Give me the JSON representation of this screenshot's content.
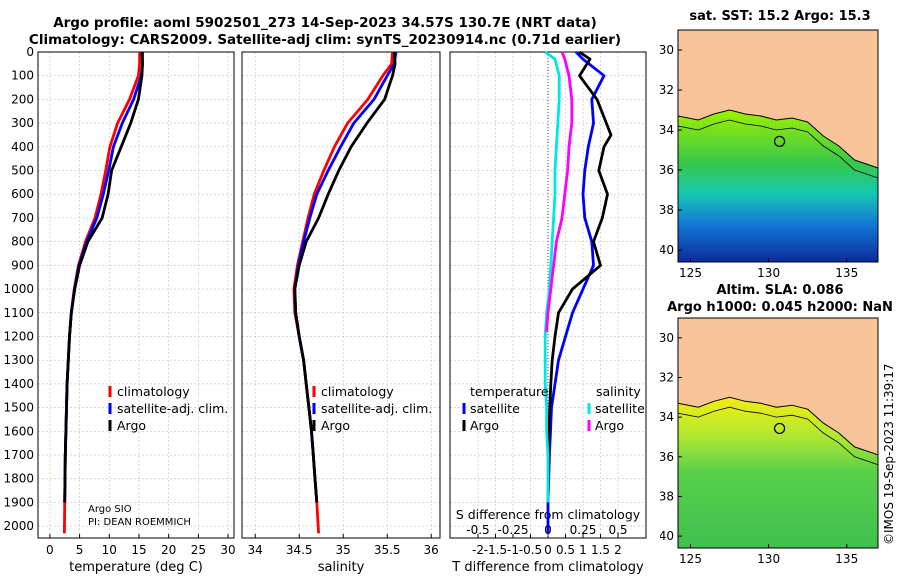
{
  "header": {
    "title_line1": "Argo profile: aoml 5902501_273 14-Sep-2023 34.57S 130.7E (NRT data)",
    "title_line2": "Climatology: CARS2009. Satellite-adj clim: synTS_20230914.nc (0.71d earlier)"
  },
  "credit": "©IMOS 19-Sep-2023 11:39:17",
  "colors": {
    "climatology": "#ff0000",
    "satellite": "#0000ff",
    "argo": "#000000",
    "s_satellite": "#00e5e5",
    "s_argo": "#ff00ff",
    "land": "#f9c49a",
    "grid": "#c8c8c8"
  },
  "depth_ticks": [
    "0",
    "100",
    "200",
    "300",
    "400",
    "500",
    "600",
    "700",
    "800",
    "900",
    "1000",
    "1100",
    "1200",
    "1300",
    "1400",
    "1500",
    "1600",
    "1700",
    "1800",
    "1900",
    "2000"
  ],
  "panels": {
    "temperature": {
      "xlabel": "temperature (deg C)",
      "xticks": [
        "0",
        "5",
        "10",
        "15",
        "20",
        "25",
        "30"
      ],
      "legend": {
        "climatology": "climatology",
        "satellite": "satellite-adj. clim.",
        "argo": "Argo"
      },
      "note_line1": "Argo SIO",
      "note_line2": "PI: DEAN ROEMMICH"
    },
    "salinity": {
      "xlabel": "salinity",
      "xticks": [
        "34",
        "34.5",
        "35",
        "35.5",
        "36"
      ],
      "legend": {
        "climatology": "climatology",
        "satellite": "satellite-adj. clim.",
        "argo": "Argo"
      }
    },
    "difference": {
      "xlabel": "T difference from climatology",
      "toplabel": "S difference from climatology",
      "xticks": [
        "-2",
        "-1.5",
        "-1",
        "-0.5",
        "0",
        "0.5",
        "1",
        "1.5",
        "2"
      ],
      "top_ticks": [
        "-0.5",
        "-0.25",
        "0",
        "0.25",
        "0.5"
      ],
      "legend_left_title": "temperature",
      "legend_left_items": [
        "satellite",
        "Argo"
      ],
      "legend_right_title": "salinity",
      "legend_right_items": [
        "satellite",
        "Argo"
      ]
    }
  },
  "maps": {
    "sst": {
      "title": "sat. SST: 15.2 Argo: 15.3"
    },
    "sla": {
      "title_line1": "Altim. SLA: 0.086",
      "title_line2": "Argo h1000: 0.045 h2000: NaN"
    },
    "lat_ticks": [
      "-30",
      "-32",
      "-34",
      "-36",
      "-38",
      "-40"
    ],
    "lon_ticks": [
      "125",
      "130",
      "135"
    ],
    "argo_position": {
      "lon": 130.7,
      "lat": -34.57
    }
  },
  "chart_data": [
    {
      "type": "line",
      "title": "",
      "xlabel": "temperature (deg C)",
      "ylabel": "",
      "xlim": [
        -2,
        31
      ],
      "ylim": [
        2050,
        0
      ],
      "y_inverted": true,
      "grid": true,
      "legend_position": "lower-right",
      "series": [
        {
          "name": "climatology",
          "x": [
            15.1,
            15.1,
            14.9,
            13.4,
            11.4,
            10.1,
            9.4,
            8.6,
            7.6,
            6.0,
            4.8,
            4.1,
            3.6,
            3.3,
            3.1,
            2.9,
            2.8,
            2.7,
            2.6,
            2.55,
            2.5,
            2.45
          ],
          "y": [
            0,
            50,
            100,
            200,
            300,
            400,
            500,
            600,
            700,
            800,
            900,
            1000,
            1100,
            1200,
            1300,
            1400,
            1500,
            1600,
            1700,
            1800,
            1900,
            2030
          ]
        },
        {
          "name": "satellite-adj. clim.",
          "x": [
            15.6,
            15.6,
            15.4,
            14.1,
            12.2,
            10.7,
            9.9,
            9.0,
            7.9,
            6.2,
            4.9,
            4.15,
            3.6,
            3.3,
            3.1,
            2.9,
            2.8,
            2.7,
            2.6,
            2.55,
            2.5
          ],
          "y": [
            0,
            50,
            100,
            200,
            300,
            400,
            500,
            600,
            700,
            800,
            900,
            1000,
            1100,
            1200,
            1300,
            1400,
            1500,
            1600,
            1700,
            1800,
            1900
          ]
        },
        {
          "name": "Argo",
          "x": [
            15.5,
            15.6,
            15.5,
            14.9,
            13.6,
            12.0,
            10.4,
            9.8,
            8.8,
            6.4,
            5.0,
            4.2,
            3.6,
            3.3,
            3.1,
            2.9,
            2.8,
            2.7,
            2.6,
            2.55,
            2.5
          ],
          "y": [
            0,
            50,
            100,
            200,
            300,
            400,
            500,
            600,
            700,
            800,
            900,
            1000,
            1100,
            1200,
            1300,
            1400,
            1500,
            1600,
            1700,
            1800,
            1900
          ]
        }
      ]
    },
    {
      "type": "line",
      "title": "",
      "xlabel": "salinity",
      "ylabel": "",
      "xlim": [
        33.85,
        36.1
      ],
      "ylim": [
        2050,
        0
      ],
      "y_inverted": true,
      "grid": true,
      "legend_position": "lower-right",
      "series": [
        {
          "name": "climatology",
          "x": [
            35.56,
            35.55,
            35.45,
            35.28,
            35.05,
            34.9,
            34.78,
            34.67,
            34.6,
            34.54,
            34.48,
            34.44,
            34.45,
            34.5,
            34.55,
            34.58,
            34.61,
            34.64,
            34.66,
            34.68,
            34.7,
            34.72
          ],
          "y": [
            0,
            50,
            100,
            200,
            300,
            400,
            500,
            600,
            700,
            800,
            900,
            1000,
            1100,
            1200,
            1300,
            1400,
            1500,
            1600,
            1700,
            1800,
            1900,
            2030
          ]
        },
        {
          "name": "satellite-adj. clim.",
          "x": [
            35.6,
            35.58,
            35.5,
            35.35,
            35.12,
            34.97,
            34.83,
            34.7,
            34.62,
            34.55,
            34.49,
            34.45,
            34.46,
            34.5,
            34.55,
            34.58,
            34.61,
            34.64,
            34.66,
            34.68,
            34.7
          ],
          "y": [
            0,
            50,
            100,
            200,
            300,
            400,
            500,
            600,
            700,
            800,
            900,
            1000,
            1100,
            1200,
            1300,
            1400,
            1500,
            1600,
            1700,
            1800,
            1900
          ]
        },
        {
          "name": "Argo",
          "x": [
            35.58,
            35.59,
            35.56,
            35.47,
            35.27,
            35.09,
            34.95,
            34.83,
            34.72,
            34.58,
            34.5,
            34.45,
            34.46,
            34.5,
            34.55,
            34.58,
            34.61,
            34.64,
            34.66,
            34.68,
            34.7
          ],
          "y": [
            0,
            50,
            100,
            200,
            300,
            400,
            500,
            600,
            700,
            800,
            900,
            1000,
            1100,
            1200,
            1300,
            1400,
            1500,
            1600,
            1700,
            1800,
            1900
          ]
        }
      ]
    },
    {
      "type": "line",
      "title": "",
      "xlabel": "T difference from climatology",
      "x2label": "S difference from climatology",
      "ylabel": "",
      "xlim": [
        -2.8,
        2.8
      ],
      "x2lim": [
        -0.7,
        0.7
      ],
      "ylim": [
        2050,
        0
      ],
      "y_inverted": true,
      "grid": true,
      "legend_position": "lower",
      "series": [
        {
          "name": "temperature satellite",
          "axis": "T",
          "x": [
            0.8,
            1.0,
            1.6,
            1.25,
            1.3,
            1.15,
            1.05,
            1.0,
            1.05,
            1.25,
            1.3,
            1.0,
            0.7,
            0.5,
            0.3,
            0.2,
            0.1,
            0.07,
            0.04,
            0.02,
            0.0,
            0.0
          ],
          "y": [
            0,
            30,
            100,
            200,
            300,
            400,
            500,
            600,
            700,
            800,
            900,
            1000,
            1100,
            1200,
            1300,
            1400,
            1500,
            1600,
            1700,
            1800,
            1900,
            2030
          ]
        },
        {
          "name": "temperature Argo",
          "axis": "T",
          "x": [
            0.9,
            1.2,
            0.9,
            1.4,
            1.8,
            1.6,
            1.45,
            1.7,
            1.55,
            1.3,
            1.5,
            0.7,
            0.3,
            0.2,
            0.12,
            0.08,
            0.05,
            0.03,
            0.02,
            0.01,
            0.0
          ],
          "y": [
            0,
            30,
            100,
            200,
            350,
            400,
            500,
            600,
            700,
            800,
            900,
            1000,
            1100,
            1200,
            1300,
            1400,
            1500,
            1600,
            1700,
            1800,
            1900
          ]
        },
        {
          "name": "salinity satellite",
          "axis": "S",
          "x": [
            -0.02,
            0.05,
            0.08,
            0.08,
            0.07,
            0.06,
            0.05,
            0.05,
            0.04,
            0.03,
            0.02,
            0.01,
            -0.01,
            -0.02,
            -0.02,
            -0.02,
            -0.01,
            -0.01,
            0.0,
            0.0,
            0.0
          ],
          "y": [
            0,
            30,
            100,
            200,
            300,
            400,
            500,
            600,
            700,
            800,
            900,
            1000,
            1100,
            1200,
            1300,
            1400,
            1500,
            1600,
            1700,
            1800,
            1900
          ]
        },
        {
          "name": "salinity Argo",
          "axis": "S",
          "x": [
            0.1,
            0.12,
            0.15,
            0.17,
            0.17,
            0.15,
            0.14,
            0.12,
            0.1,
            0.06,
            0.04,
            0.02,
            0.0,
            -0.01
          ],
          "y": [
            0,
            30,
            100,
            200,
            300,
            400,
            500,
            600,
            700,
            800,
            900,
            1000,
            1100,
            1180
          ]
        }
      ]
    }
  ]
}
